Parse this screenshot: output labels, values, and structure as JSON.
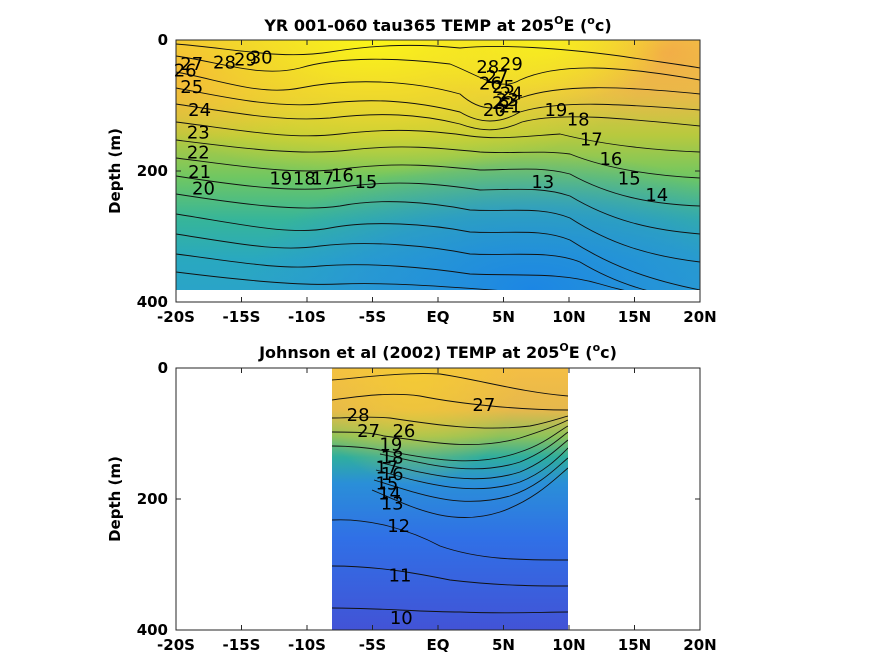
{
  "chart_data": [
    {
      "type": "contour",
      "title_main": "YR 001-060 tau365 TEMP at 205",
      "title_sup": "O",
      "title_mid": "E (",
      "title_sup2": "o",
      "title_end": "c)",
      "ylabel": "Depth (m)",
      "xlim": [
        -20,
        20
      ],
      "ylim": [
        0,
        400
      ],
      "data_extent": {
        "x": [
          -20,
          20
        ],
        "depth": [
          0,
          380
        ]
      },
      "x_ticks": [
        -20,
        -15,
        -10,
        -5,
        0,
        5,
        10,
        15,
        20
      ],
      "x_tick_labels": [
        "-20S",
        "-15S",
        "-10S",
        "-5S",
        "EQ",
        "5N",
        "10N",
        "15N",
        "20N"
      ],
      "y_ticks": [
        0,
        200,
        400
      ],
      "y_tick_labels": [
        "0",
        "200",
        "400"
      ],
      "contour_labels": [
        {
          "text": "30",
          "x": -13.5,
          "depth": 25
        },
        {
          "text": "29",
          "x": -14.7,
          "depth": 28
        },
        {
          "text": "28",
          "x": -16.3,
          "depth": 33
        },
        {
          "text": "27",
          "x": -18.8,
          "depth": 35
        },
        {
          "text": "26",
          "x": -19.3,
          "depth": 45
        },
        {
          "text": "25",
          "x": -18.8,
          "depth": 70
        },
        {
          "text": "24",
          "x": -18.2,
          "depth": 105
        },
        {
          "text": "23",
          "x": -18.3,
          "depth": 140
        },
        {
          "text": "22",
          "x": -18.3,
          "depth": 170
        },
        {
          "text": "21",
          "x": -18.2,
          "depth": 200
        },
        {
          "text": "20",
          "x": -17.9,
          "depth": 225
        },
        {
          "text": "19",
          "x": -12.0,
          "depth": 210
        },
        {
          "text": "18",
          "x": -10.2,
          "depth": 210
        },
        {
          "text": "17",
          "x": -8.8,
          "depth": 210
        },
        {
          "text": "16",
          "x": -7.3,
          "depth": 205
        },
        {
          "text": "15",
          "x": -5.5,
          "depth": 215
        },
        {
          "text": "29",
          "x": 5.6,
          "depth": 35
        },
        {
          "text": "28",
          "x": 3.8,
          "depth": 40
        },
        {
          "text": "27",
          "x": 4.5,
          "depth": 55
        },
        {
          "text": "26",
          "x": 4.0,
          "depth": 65
        },
        {
          "text": "25",
          "x": 5.0,
          "depth": 70
        },
        {
          "text": "24",
          "x": 5.6,
          "depth": 80
        },
        {
          "text": "23",
          "x": 5.3,
          "depth": 90
        },
        {
          "text": "22",
          "x": 5.0,
          "depth": 95
        },
        {
          "text": "21",
          "x": 5.5,
          "depth": 100
        },
        {
          "text": "20",
          "x": 4.3,
          "depth": 105
        },
        {
          "text": "19",
          "x": 9.0,
          "depth": 105
        },
        {
          "text": "18",
          "x": 10.7,
          "depth": 120
        },
        {
          "text": "17",
          "x": 11.7,
          "depth": 150
        },
        {
          "text": "16",
          "x": 13.2,
          "depth": 180
        },
        {
          "text": "15",
          "x": 14.6,
          "depth": 210
        },
        {
          "text": "14",
          "x": 16.7,
          "depth": 235
        },
        {
          "text": "13",
          "x": 8.0,
          "depth": 215
        }
      ]
    },
    {
      "type": "contour",
      "title_main": "Johnson et al (2002) TEMP at 205",
      "title_sup": "O",
      "title_mid": "E (",
      "title_sup2": "o",
      "title_end": "c)",
      "ylabel": "Depth (m)",
      "xlim": [
        -20,
        20
      ],
      "ylim": [
        0,
        400
      ],
      "data_extent": {
        "x": [
          -8,
          10
        ],
        "depth": [
          0,
          400
        ]
      },
      "x_ticks": [
        -20,
        -15,
        -10,
        -5,
        0,
        5,
        10,
        15,
        20
      ],
      "x_tick_labels": [
        "-20S",
        "-15S",
        "-10S",
        "-5S",
        "EQ",
        "5N",
        "10N",
        "15N",
        "20N"
      ],
      "y_ticks": [
        0,
        200,
        400
      ],
      "y_tick_labels": [
        "0",
        "200",
        "400"
      ],
      "contour_labels": [
        {
          "text": "28",
          "x": -6.1,
          "depth": 70
        },
        {
          "text": "27",
          "x": -5.3,
          "depth": 95
        },
        {
          "text": "26",
          "x": -2.6,
          "depth": 95
        },
        {
          "text": "27",
          "x": 3.5,
          "depth": 55
        },
        {
          "text": "19",
          "x": -3.6,
          "depth": 115
        },
        {
          "text": "18",
          "x": -3.5,
          "depth": 135
        },
        {
          "text": "17",
          "x": -3.9,
          "depth": 150
        },
        {
          "text": "16",
          "x": -3.5,
          "depth": 160
        },
        {
          "text": "15",
          "x": -3.9,
          "depth": 175
        },
        {
          "text": "14",
          "x": -3.7,
          "depth": 190
        },
        {
          "text": "13",
          "x": -3.5,
          "depth": 205
        },
        {
          "text": "12",
          "x": -3.0,
          "depth": 240
        },
        {
          "text": "11",
          "x": -2.9,
          "depth": 315
        },
        {
          "text": "10",
          "x": -2.8,
          "depth": 380
        }
      ]
    }
  ]
}
